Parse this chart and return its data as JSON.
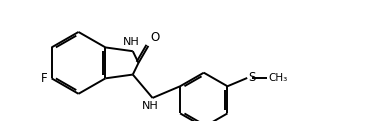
{
  "bg_color": "#ffffff",
  "line_color": "#000000",
  "label_color": "#000000",
  "figsize": [
    3.81,
    1.22
  ],
  "dpi": 100,
  "xlim": [
    0,
    10
  ],
  "ylim": [
    0,
    3.2
  ]
}
